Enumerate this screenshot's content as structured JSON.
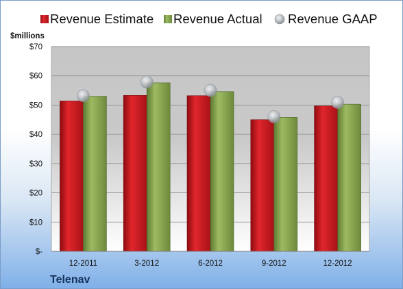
{
  "chart_data": {
    "type": "bar",
    "categories": [
      "12-2011",
      "3-2012",
      "6-2012",
      "9-2012",
      "12-2012"
    ],
    "series": [
      {
        "name": "Revenue Estimate",
        "values": [
          51.4,
          53.3,
          53.2,
          45.0,
          49.7
        ],
        "color": "#c0161c"
      },
      {
        "name": "Revenue Actual",
        "values": [
          53.0,
          57.6,
          54.6,
          45.8,
          50.3
        ],
        "color": "#82a04e"
      },
      {
        "name": "Revenue GAAP",
        "values": [
          53.2,
          57.9,
          55.0,
          46.0,
          50.9
        ],
        "color": "#b8bcc2",
        "marker": "circle"
      }
    ],
    "ylabel": "$millions",
    "ylim": [
      0,
      70
    ],
    "yticks": [
      0,
      10,
      20,
      30,
      40,
      50,
      60,
      70
    ],
    "ytick_labels": [
      "$-",
      "$10",
      "$20",
      "$30",
      "$40",
      "$50",
      "$60",
      "$70"
    ],
    "grid": true,
    "legend_position": "top",
    "company": "Telenav"
  }
}
